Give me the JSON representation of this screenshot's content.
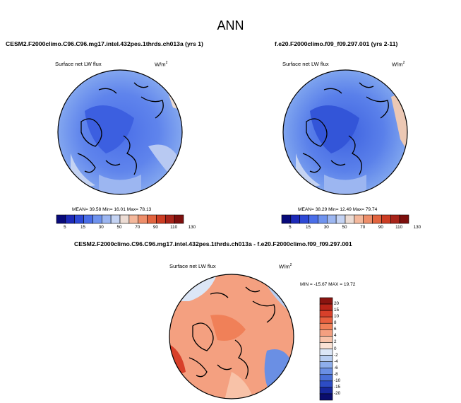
{
  "figure": {
    "title": "ANN",
    "panels": [
      {
        "case": "CESM2.F2000climo.C96.C96.mg17.intel.432pes.1thrds.ch013a (yrs 1)",
        "variable": "Surface net LW flux",
        "units": "W/m",
        "units_exp": "2",
        "stats": "MEAN=  39.58  Min=  16.01  Max=  78.13"
      },
      {
        "case": "f.e20.F2000climo.f09_f09.297.001 (yrs 2-11)",
        "variable": "Surface net LW flux",
        "units": "W/m",
        "units_exp": "2",
        "stats": "MEAN=  38.29  Min=  12.49  Max=  79.74"
      },
      {
        "case": "CESM2.F2000climo.C96.C96.mg17.intel.432pes.1thrds.ch013a - f.e20.F2000climo.f09_f09.297.001",
        "variable": "Surface net LW flux",
        "units": "W/m",
        "units_exp": "2",
        "stats": "MIN = -15.67  MAX =  19.72"
      }
    ],
    "colorbar_main": {
      "labels": [
        "5",
        "15",
        "30",
        "50",
        "70",
        "90",
        "110",
        "130"
      ],
      "colors": [
        "#080a7a",
        "#1d2ab8",
        "#2e49d6",
        "#4a6ee8",
        "#6f93ee",
        "#9cb6f1",
        "#c4d3f3",
        "#ecdcd4",
        "#f4b89c",
        "#ee8e6a",
        "#e2643f",
        "#cc3d24",
        "#a8241a",
        "#7d0f0d"
      ]
    },
    "colorbar_diff": {
      "labels": [
        "20",
        "15",
        "10",
        "8",
        "6",
        "4",
        "2",
        "0",
        "-2",
        "-4",
        "-6",
        "-8",
        "-10",
        "-15",
        "-20"
      ],
      "colors": [
        "#8a1410",
        "#b82418",
        "#d8402a",
        "#e8603f",
        "#f08058",
        "#f4a080",
        "#f8c2a8",
        "#fbe2d4",
        "#dce6f6",
        "#b8cdf1",
        "#8eaeec",
        "#6a8fe4",
        "#4a70d8",
        "#2d4cc4",
        "#17279c",
        "#0a0d6e"
      ]
    }
  }
}
